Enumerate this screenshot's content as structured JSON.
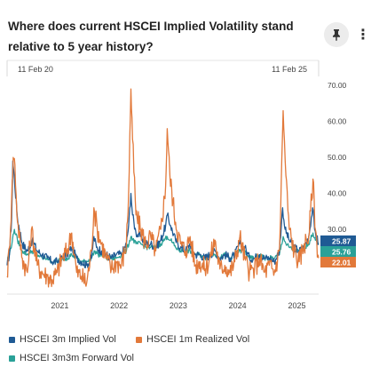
{
  "header": {
    "title": "Where does current HSCEI Implied Volatility stand relative to 5 year history?",
    "pin_icon": "pin-icon",
    "more_icon": "more-vertical-icon",
    "more_glyph": "⋮"
  },
  "colors": {
    "implied": "#1f5a94",
    "realized": "#e2793a",
    "forward": "#2aa198",
    "grid": "#e3e3e3",
    "axis_text": "#444444"
  },
  "chart_data": {
    "type": "line",
    "title": "Where does current HSCEI Implied Volatility stand relative to 5 year history?",
    "x_range": [
      "2020-02-11",
      "2025-05-15"
    ],
    "range_labels": {
      "start": "11 Feb 20",
      "end": "11 Feb 25"
    },
    "x_ticks": [
      "2021",
      "2022",
      "2023",
      "2024",
      "2025"
    ],
    "y_ticks": [
      "30.00",
      "40.00",
      "50.00",
      "60.00",
      "70.00"
    ],
    "ylim": [
      12,
      74
    ],
    "grid": false,
    "legend_position": "bottom",
    "series": [
      {
        "name": "HSCEI 3m Implied Vol",
        "color": "#1f5a94",
        "last_label": "25.87",
        "points": [
          [
            "2020-02-11",
            20
          ],
          [
            "2020-02-25",
            23
          ],
          [
            "2020-03-10",
            33
          ],
          [
            "2020-03-17",
            49
          ],
          [
            "2020-03-27",
            44
          ],
          [
            "2020-04-15",
            33
          ],
          [
            "2020-05-15",
            26
          ],
          [
            "2020-06-15",
            24
          ],
          [
            "2020-07-15",
            27
          ],
          [
            "2020-08-15",
            24
          ],
          [
            "2020-09-15",
            23
          ],
          [
            "2020-10-15",
            22
          ],
          [
            "2020-11-15",
            21
          ],
          [
            "2020-12-15",
            21
          ],
          [
            "2021-01-15",
            22
          ],
          [
            "2021-02-15",
            23
          ],
          [
            "2021-03-15",
            25
          ],
          [
            "2021-04-15",
            22
          ],
          [
            "2021-05-15",
            21
          ],
          [
            "2021-06-15",
            20
          ],
          [
            "2021-07-15",
            22
          ],
          [
            "2021-07-30",
            28
          ],
          [
            "2021-08-15",
            25
          ],
          [
            "2021-09-15",
            24
          ],
          [
            "2021-10-15",
            23
          ],
          [
            "2021-11-15",
            22
          ],
          [
            "2021-12-15",
            23
          ],
          [
            "2022-01-15",
            23
          ],
          [
            "2022-02-15",
            26
          ],
          [
            "2022-03-01",
            31
          ],
          [
            "2022-03-15",
            40
          ],
          [
            "2022-03-25",
            34
          ],
          [
            "2022-04-15",
            29
          ],
          [
            "2022-05-15",
            28
          ],
          [
            "2022-06-15",
            26
          ],
          [
            "2022-07-15",
            26
          ],
          [
            "2022-08-15",
            25
          ],
          [
            "2022-09-15",
            27
          ],
          [
            "2022-10-15",
            31
          ],
          [
            "2022-10-25",
            34
          ],
          [
            "2022-11-15",
            31
          ],
          [
            "2022-12-15",
            27
          ],
          [
            "2023-01-15",
            25
          ],
          [
            "2023-02-15",
            24
          ],
          [
            "2023-03-15",
            26
          ],
          [
            "2023-04-15",
            23
          ],
          [
            "2023-05-15",
            23
          ],
          [
            "2023-06-15",
            22
          ],
          [
            "2023-07-15",
            23
          ],
          [
            "2023-08-15",
            24
          ],
          [
            "2023-09-15",
            22
          ],
          [
            "2023-10-15",
            23
          ],
          [
            "2023-11-15",
            22
          ],
          [
            "2023-12-15",
            23
          ],
          [
            "2024-01-15",
            26
          ],
          [
            "2024-02-15",
            25
          ],
          [
            "2024-03-15",
            22
          ],
          [
            "2024-04-15",
            22
          ],
          [
            "2024-05-15",
            23
          ],
          [
            "2024-06-15",
            22
          ],
          [
            "2024-07-15",
            22
          ],
          [
            "2024-08-15",
            21
          ],
          [
            "2024-09-15",
            24
          ],
          [
            "2024-10-05",
            36
          ],
          [
            "2024-10-20",
            30
          ],
          [
            "2024-11-15",
            27
          ],
          [
            "2024-12-15",
            25
          ],
          [
            "2025-01-15",
            24
          ],
          [
            "2025-02-15",
            25
          ],
          [
            "2025-03-15",
            28
          ],
          [
            "2025-04-08",
            36
          ],
          [
            "2025-04-20",
            30
          ],
          [
            "2025-05-15",
            25.87
          ]
        ]
      },
      {
        "name": "HSCEI 1m Realized Vol",
        "color": "#e2793a",
        "last_label": "22.01",
        "points": [
          [
            "2020-02-11",
            17
          ],
          [
            "2020-02-25",
            25
          ],
          [
            "2020-03-10",
            38
          ],
          [
            "2020-03-20",
            50
          ],
          [
            "2020-03-30",
            48
          ],
          [
            "2020-04-15",
            32
          ],
          [
            "2020-05-15",
            22
          ],
          [
            "2020-06-15",
            18
          ],
          [
            "2020-07-10",
            30
          ],
          [
            "2020-08-15",
            20
          ],
          [
            "2020-09-15",
            18
          ],
          [
            "2020-10-15",
            17
          ],
          [
            "2020-11-15",
            16
          ],
          [
            "2020-12-15",
            18
          ],
          [
            "2021-01-15",
            22
          ],
          [
            "2021-02-15",
            24
          ],
          [
            "2021-03-15",
            29
          ],
          [
            "2021-04-15",
            18
          ],
          [
            "2021-05-15",
            17
          ],
          [
            "2021-06-15",
            15
          ],
          [
            "2021-07-15",
            24
          ],
          [
            "2021-07-30",
            36
          ],
          [
            "2021-08-20",
            30
          ],
          [
            "2021-09-15",
            26
          ],
          [
            "2021-10-15",
            22
          ],
          [
            "2021-11-15",
            19
          ],
          [
            "2021-12-15",
            21
          ],
          [
            "2022-01-15",
            20
          ],
          [
            "2022-02-15",
            26
          ],
          [
            "2022-03-01",
            40
          ],
          [
            "2022-03-15",
            69
          ],
          [
            "2022-03-25",
            55
          ],
          [
            "2022-04-15",
            34
          ],
          [
            "2022-05-15",
            30
          ],
          [
            "2022-06-15",
            26
          ],
          [
            "2022-07-15",
            28
          ],
          [
            "2022-08-15",
            24
          ],
          [
            "2022-09-15",
            30
          ],
          [
            "2022-10-15",
            42
          ],
          [
            "2022-10-25",
            58
          ],
          [
            "2022-11-10",
            45
          ],
          [
            "2022-12-15",
            32
          ],
          [
            "2023-01-15",
            26
          ],
          [
            "2023-02-15",
            24
          ],
          [
            "2023-03-15",
            28
          ],
          [
            "2023-04-15",
            20
          ],
          [
            "2023-05-15",
            21
          ],
          [
            "2023-06-15",
            19
          ],
          [
            "2023-07-15",
            22
          ],
          [
            "2023-08-15",
            27
          ],
          [
            "2023-09-15",
            19
          ],
          [
            "2023-10-15",
            20
          ],
          [
            "2023-11-15",
            18
          ],
          [
            "2023-12-15",
            21
          ],
          [
            "2024-01-15",
            28
          ],
          [
            "2024-02-15",
            22
          ],
          [
            "2024-03-15",
            18
          ],
          [
            "2024-04-15",
            19
          ],
          [
            "2024-05-15",
            22
          ],
          [
            "2024-06-15",
            18
          ],
          [
            "2024-07-15",
            20
          ],
          [
            "2024-08-15",
            18
          ],
          [
            "2024-09-15",
            24
          ],
          [
            "2024-09-25",
            40
          ],
          [
            "2024-10-08",
            63
          ],
          [
            "2024-10-25",
            45
          ],
          [
            "2024-11-15",
            30
          ],
          [
            "2024-12-15",
            24
          ],
          [
            "2025-01-15",
            21
          ],
          [
            "2025-02-15",
            26
          ],
          [
            "2025-03-15",
            28
          ],
          [
            "2025-04-10",
            44
          ],
          [
            "2025-04-25",
            30
          ],
          [
            "2025-05-15",
            22.01
          ]
        ]
      },
      {
        "name": "HSCEI 3m3m Forward Vol",
        "color": "#2aa198",
        "last_label": "25.76",
        "points": [
          [
            "2020-02-11",
            22
          ],
          [
            "2020-02-25",
            23
          ],
          [
            "2020-03-15",
            27
          ],
          [
            "2020-03-27",
            30
          ],
          [
            "2020-04-15",
            27
          ],
          [
            "2020-05-15",
            24
          ],
          [
            "2020-06-15",
            23
          ],
          [
            "2020-07-15",
            24
          ],
          [
            "2020-08-15",
            23
          ],
          [
            "2020-09-15",
            22
          ],
          [
            "2020-10-15",
            22
          ],
          [
            "2020-11-15",
            21
          ],
          [
            "2020-12-15",
            21
          ],
          [
            "2021-01-15",
            22
          ],
          [
            "2021-02-15",
            22
          ],
          [
            "2021-03-15",
            23
          ],
          [
            "2021-04-15",
            22
          ],
          [
            "2021-05-15",
            21
          ],
          [
            "2021-06-15",
            21
          ],
          [
            "2021-07-15",
            22
          ],
          [
            "2021-08-05",
            24
          ],
          [
            "2021-08-25",
            23
          ],
          [
            "2021-09-15",
            23
          ],
          [
            "2021-10-15",
            22
          ],
          [
            "2021-11-15",
            22
          ],
          [
            "2021-12-15",
            22
          ],
          [
            "2022-01-15",
            23
          ],
          [
            "2022-02-15",
            24
          ],
          [
            "2022-03-15",
            28
          ],
          [
            "2022-04-15",
            26
          ],
          [
            "2022-05-15",
            26
          ],
          [
            "2022-06-15",
            25
          ],
          [
            "2022-07-15",
            25
          ],
          [
            "2022-08-15",
            25
          ],
          [
            "2022-09-15",
            26
          ],
          [
            "2022-10-25",
            28
          ],
          [
            "2022-11-15",
            27
          ],
          [
            "2022-12-15",
            25
          ],
          [
            "2023-01-15",
            24
          ],
          [
            "2023-02-15",
            24
          ],
          [
            "2023-03-15",
            24
          ],
          [
            "2023-04-15",
            23
          ],
          [
            "2023-05-15",
            23
          ],
          [
            "2023-06-15",
            22
          ],
          [
            "2023-07-15",
            23
          ],
          [
            "2023-08-15",
            23
          ],
          [
            "2023-09-15",
            22
          ],
          [
            "2023-10-15",
            23
          ],
          [
            "2023-11-15",
            22
          ],
          [
            "2023-12-15",
            23
          ],
          [
            "2024-01-15",
            24
          ],
          [
            "2024-02-15",
            24
          ],
          [
            "2024-03-15",
            22
          ],
          [
            "2024-04-15",
            22
          ],
          [
            "2024-05-15",
            23
          ],
          [
            "2024-06-15",
            22
          ],
          [
            "2024-07-15",
            22
          ],
          [
            "2024-08-15",
            22
          ],
          [
            "2024-09-15",
            23
          ],
          [
            "2024-10-08",
            28
          ],
          [
            "2024-10-25",
            26
          ],
          [
            "2024-11-15",
            25
          ],
          [
            "2024-12-15",
            24
          ],
          [
            "2025-01-15",
            24
          ],
          [
            "2025-02-15",
            25
          ],
          [
            "2025-03-15",
            26
          ],
          [
            "2025-04-10",
            29
          ],
          [
            "2025-04-25",
            27
          ],
          [
            "2025-05-15",
            25.76
          ]
        ]
      }
    ]
  },
  "legend": [
    {
      "label": "HSCEI 3m Implied Vol",
      "color": "#1f5a94"
    },
    {
      "label": "HSCEI 1m Realized Vol",
      "color": "#e2793a"
    },
    {
      "label": "HSCEI 3m3m Forward Vol",
      "color": "#2aa198"
    }
  ]
}
